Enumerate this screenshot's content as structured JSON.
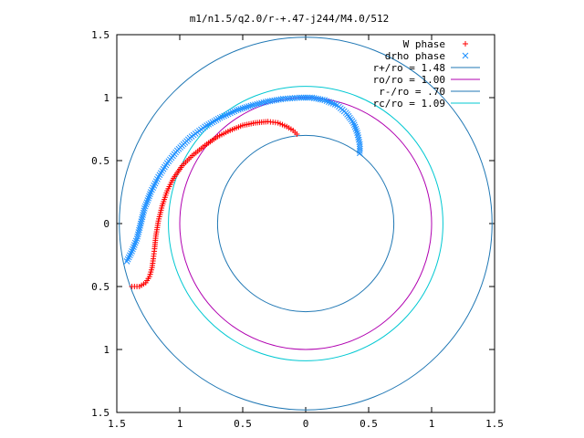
{
  "chart_data": {
    "type": "scatter",
    "title": "m1/n1.5/q2.0/r-+.47-j244/M4.0/512",
    "xlim": [
      -1.5,
      1.5
    ],
    "ylim": [
      -1.5,
      1.5
    ],
    "x_ticks": [
      "1.5",
      "1",
      "0.5",
      "0",
      "0.5",
      "1",
      "1.5"
    ],
    "y_ticks": [
      "1.5",
      "1",
      "0.5",
      "0",
      "0.5",
      "1",
      "1.5"
    ],
    "x_tick_values": [
      -1.5,
      -1,
      -0.5,
      0,
      0.5,
      1,
      1.5
    ],
    "y_tick_values": [
      1.5,
      1,
      0.5,
      0,
      -0.5,
      -1,
      -1.5
    ],
    "grid": false,
    "legend_position": "top-right",
    "series": [
      {
        "name": "W phase",
        "kind": "points",
        "marker": "+",
        "color": "#ff0000",
        "points": [
          [
            -0.07,
            0.71
          ],
          [
            -0.1,
            0.74
          ],
          [
            -0.15,
            0.77
          ],
          [
            -0.22,
            0.8
          ],
          [
            -0.3,
            0.81
          ],
          [
            -0.4,
            0.8
          ],
          [
            -0.5,
            0.78
          ],
          [
            -0.6,
            0.74
          ],
          [
            -0.7,
            0.69
          ],
          [
            -0.8,
            0.62
          ],
          [
            -0.9,
            0.54
          ],
          [
            -0.98,
            0.46
          ],
          [
            -1.05,
            0.36
          ],
          [
            -1.1,
            0.26
          ],
          [
            -1.14,
            0.14
          ],
          [
            -1.17,
            0.02
          ],
          [
            -1.19,
            -0.1
          ],
          [
            -1.2,
            -0.2
          ],
          [
            -1.21,
            -0.28
          ],
          [
            -1.22,
            -0.35
          ],
          [
            -1.24,
            -0.42
          ],
          [
            -1.27,
            -0.47
          ],
          [
            -1.32,
            -0.5
          ],
          [
            -1.38,
            -0.5
          ]
        ]
      },
      {
        "name": "drho phase",
        "kind": "points",
        "marker": "x",
        "color": "#1e90ff",
        "points": [
          [
            0.43,
            0.56
          ],
          [
            0.43,
            0.63
          ],
          [
            0.41,
            0.72
          ],
          [
            0.38,
            0.8
          ],
          [
            0.32,
            0.88
          ],
          [
            0.25,
            0.94
          ],
          [
            0.15,
            0.98
          ],
          [
            0.05,
            1.0
          ],
          [
            -0.05,
            1.0
          ],
          [
            -0.18,
            0.99
          ],
          [
            -0.3,
            0.97
          ],
          [
            -0.42,
            0.94
          ],
          [
            -0.55,
            0.9
          ],
          [
            -0.68,
            0.84
          ],
          [
            -0.8,
            0.77
          ],
          [
            -0.92,
            0.68
          ],
          [
            -1.02,
            0.58
          ],
          [
            -1.1,
            0.48
          ],
          [
            -1.17,
            0.37
          ],
          [
            -1.23,
            0.25
          ],
          [
            -1.28,
            0.12
          ],
          [
            -1.31,
            0.0
          ],
          [
            -1.34,
            -0.12
          ],
          [
            -1.38,
            -0.22
          ],
          [
            -1.42,
            -0.3
          ]
        ]
      },
      {
        "name": "r+/ro = 1.48",
        "kind": "circle",
        "radius": 1.48,
        "color": "#1f77b4"
      },
      {
        "name": "ro/ro = 1.00",
        "kind": "circle",
        "radius": 1.0,
        "color": "#b000b0"
      },
      {
        "name": "r-/ro = .70",
        "kind": "circle",
        "radius": 0.7,
        "color": "#1f77b4"
      },
      {
        "name": "rc/ro = 1.09",
        "kind": "circle",
        "radius": 1.09,
        "color": "#00c8d2"
      }
    ]
  }
}
